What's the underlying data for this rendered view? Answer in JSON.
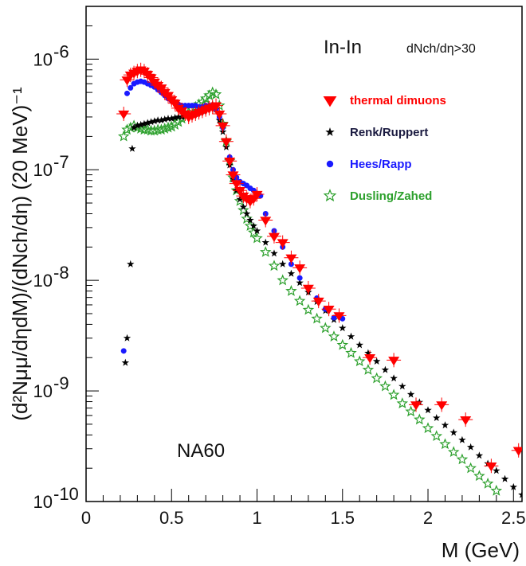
{
  "chart_data": {
    "type": "scatter",
    "title": "",
    "xlabel": "M (GeV)",
    "ylabel": "(d²Nμμ/dηdM)/(dNch/dη) (20 MeV)⁻¹",
    "xlim": [
      0,
      2.55
    ],
    "ylim": [
      1e-10,
      3e-06
    ],
    "yscale": "log",
    "grid": false,
    "legend_position": "top-right",
    "header_left": "In-In",
    "header_right": "dNch/dη>30",
    "annotation": "NA60",
    "x_ticks": [
      {
        "v": 0,
        "label": "0"
      },
      {
        "v": 0.5,
        "label": "0.5"
      },
      {
        "v": 1,
        "label": "1"
      },
      {
        "v": 1.5,
        "label": "1.5"
      },
      {
        "v": 2,
        "label": "2"
      },
      {
        "v": 2.5,
        "label": "2.5"
      }
    ],
    "y_ticks": [
      {
        "v": 1e-10,
        "label": "10",
        "exp": "-10"
      },
      {
        "v": 1e-09,
        "label": "10",
        "exp": "-9"
      },
      {
        "v": 1e-08,
        "label": "10",
        "exp": "-8"
      },
      {
        "v": 1e-07,
        "label": "10",
        "exp": "-7"
      },
      {
        "v": 1e-06,
        "label": "10",
        "exp": "-6"
      }
    ],
    "series": [
      {
        "name": "thermal dimuons",
        "color": "#ff0000",
        "marker": "triangle-down",
        "x": [
          0.22,
          0.24,
          0.26,
          0.28,
          0.3,
          0.32,
          0.34,
          0.36,
          0.38,
          0.4,
          0.42,
          0.44,
          0.46,
          0.48,
          0.5,
          0.52,
          0.54,
          0.56,
          0.58,
          0.6,
          0.62,
          0.64,
          0.66,
          0.68,
          0.7,
          0.72,
          0.74,
          0.76,
          0.78,
          0.8,
          0.82,
          0.84,
          0.86,
          0.88,
          0.9,
          0.92,
          0.94,
          0.96,
          0.98,
          1.0,
          1.05,
          1.1,
          1.15,
          1.2,
          1.25,
          1.3,
          1.36,
          1.42,
          1.48,
          1.66,
          1.8,
          1.93,
          2.08,
          2.22,
          2.37,
          2.53
        ],
        "y": [
          3.2e-07,
          6.5e-07,
          7.2e-07,
          7.5e-07,
          7.8e-07,
          8e-07,
          7.8e-07,
          7.3e-07,
          6.8e-07,
          6.2e-07,
          5.8e-07,
          5.5e-07,
          5e-07,
          4.7e-07,
          4.3e-07,
          4e-07,
          3.6e-07,
          3.4e-07,
          3.2e-07,
          3e-07,
          3.1e-07,
          3.2e-07,
          3.3e-07,
          3.4e-07,
          3.5e-07,
          3.6e-07,
          3.7e-07,
          3.8e-07,
          3.2e-07,
          2.5e-07,
          1.8e-07,
          1.2e-07,
          9e-08,
          7.5e-08,
          6.5e-08,
          5.8e-08,
          5.5e-08,
          5.2e-08,
          5.5e-08,
          6e-08,
          3.5e-08,
          2.5e-08,
          2.2e-08,
          1.6e-08,
          1.3e-08,
          8.5e-09,
          6.5e-09,
          5.5e-09,
          4.8e-09,
          2e-09,
          1.9e-09,
          7.5e-10,
          7.5e-10,
          5.5e-10,
          2.1e-10,
          2.9e-10
        ]
      },
      {
        "name": "Renk/Ruppert",
        "color": "#000000",
        "marker": "star",
        "x": [
          0.23,
          0.24,
          0.26,
          0.27,
          0.28,
          0.3,
          0.32,
          0.34,
          0.36,
          0.38,
          0.4,
          0.42,
          0.44,
          0.46,
          0.48,
          0.5,
          0.52,
          0.54,
          0.56,
          0.58,
          0.6,
          0.62,
          0.64,
          0.66,
          0.68,
          0.7,
          0.72,
          0.74,
          0.76,
          0.78,
          0.8,
          0.82,
          0.84,
          0.86,
          0.88,
          0.9,
          0.92,
          0.94,
          0.96,
          0.98,
          1.0,
          1.05,
          1.1,
          1.15,
          1.2,
          1.25,
          1.3,
          1.35,
          1.4,
          1.45,
          1.5,
          1.55,
          1.6,
          1.65,
          1.7,
          1.75,
          1.8,
          1.85,
          1.9,
          1.95,
          2.0,
          2.05,
          2.1,
          2.15,
          2.2,
          2.25,
          2.3,
          2.35,
          2.4,
          2.45,
          2.5,
          2.55
        ],
        "y": [
          1.8e-09,
          3e-09,
          1.4e-08,
          1.55e-07,
          2.4e-07,
          2.5e-07,
          2.55e-07,
          2.6e-07,
          2.65e-07,
          2.7e-07,
          2.75e-07,
          2.8e-07,
          2.8e-07,
          2.85e-07,
          2.9e-07,
          2.9e-07,
          2.95e-07,
          3e-07,
          3e-07,
          3.05e-07,
          3.1e-07,
          3.15e-07,
          3.2e-07,
          3.3e-07,
          3.4e-07,
          3.6e-07,
          3.8e-07,
          3.9e-07,
          3.5e-07,
          2.8e-07,
          2.2e-07,
          1.6e-07,
          1.1e-07,
          8.2e-08,
          6.5e-08,
          5.4e-08,
          4.6e-08,
          4e-08,
          3.5e-08,
          3.1e-08,
          2.8e-08,
          2.2e-08,
          1.75e-08,
          1.4e-08,
          1.15e-08,
          9.5e-09,
          7.8e-09,
          6.4e-09,
          5.3e-09,
          4.4e-09,
          3.7e-09,
          3.1e-09,
          2.6e-09,
          2.2e-09,
          1.85e-09,
          1.55e-09,
          1.3e-09,
          1.1e-09,
          9.3e-10,
          7.9e-10,
          6.7e-10,
          5.7e-10,
          4.9e-10,
          4.2e-10,
          3.6e-10,
          3.1e-10,
          2.6e-10,
          2.2e-10,
          1.9e-10,
          1.6e-10,
          1.35e-10,
          1.15e-10
        ]
      },
      {
        "name": "Hees/Rapp",
        "color": "#1a1aff",
        "marker": "circle",
        "x": [
          0.22,
          0.24,
          0.26,
          0.28,
          0.3,
          0.32,
          0.34,
          0.36,
          0.38,
          0.4,
          0.42,
          0.44,
          0.46,
          0.48,
          0.5,
          0.52,
          0.54,
          0.56,
          0.58,
          0.6,
          0.62,
          0.64,
          0.66,
          0.68,
          0.7,
          0.72,
          0.74,
          0.76,
          0.78,
          0.8,
          0.82,
          0.84,
          0.86,
          0.88,
          0.9,
          0.92,
          0.94,
          0.96,
          0.98,
          1.0,
          1.02,
          1.05,
          1.1,
          1.15,
          1.2,
          1.25,
          1.3,
          1.35,
          1.4,
          1.45,
          1.5
        ],
        "y": [
          2.3e-09,
          4.9e-07,
          5.5e-07,
          6e-07,
          6.2e-07,
          6.3e-07,
          6.2e-07,
          6e-07,
          5.8e-07,
          5.6e-07,
          5.3e-07,
          5e-07,
          4.7e-07,
          4.4e-07,
          4.2e-07,
          4e-07,
          3.9e-07,
          3.8e-07,
          3.8e-07,
          3.8e-07,
          3.8e-07,
          3.8e-07,
          3.7e-07,
          3.7e-07,
          3.8e-07,
          3.8e-07,
          3.7e-07,
          3.5e-07,
          3e-07,
          2.4e-07,
          1.8e-07,
          1.3e-07,
          1e-07,
          8.5e-08,
          7.8e-08,
          7.5e-08,
          7.2e-08,
          6.8e-08,
          6.5e-08,
          6.1e-08,
          5.8e-08,
          4e-08,
          2.8e-08,
          2e-08,
          1.4e-08,
          1.05e-08,
          8.5e-09,
          6.9e-09,
          5.5e-09,
          4.6e-09,
          4.5e-09
        ]
      },
      {
        "name": "Dusling/Zahed",
        "color": "#2ca02c",
        "marker": "open-star",
        "x": [
          0.22,
          0.24,
          0.26,
          0.28,
          0.3,
          0.32,
          0.34,
          0.36,
          0.38,
          0.4,
          0.42,
          0.44,
          0.46,
          0.48,
          0.5,
          0.52,
          0.54,
          0.56,
          0.58,
          0.6,
          0.62,
          0.64,
          0.66,
          0.68,
          0.7,
          0.72,
          0.74,
          0.76,
          0.78,
          0.8,
          0.82,
          0.84,
          0.86,
          0.88,
          0.9,
          0.92,
          0.94,
          0.96,
          0.98,
          1.0,
          1.05,
          1.1,
          1.15,
          1.2,
          1.25,
          1.3,
          1.35,
          1.4,
          1.45,
          1.5,
          1.55,
          1.6,
          1.65,
          1.7,
          1.75,
          1.8,
          1.85,
          1.9,
          1.95,
          2.0,
          2.05,
          2.1,
          2.15,
          2.2,
          2.25,
          2.3,
          2.35,
          2.4
        ],
        "y": [
          2e-07,
          2.3e-07,
          2.4e-07,
          2.5e-07,
          2.4e-07,
          2.35e-07,
          2.3e-07,
          2.3e-07,
          2.25e-07,
          2.25e-07,
          2.3e-07,
          2.3e-07,
          2.35e-07,
          2.4e-07,
          2.45e-07,
          2.55e-07,
          2.7e-07,
          2.9e-07,
          3.1e-07,
          3.3e-07,
          3.5e-07,
          3.7e-07,
          3.9e-07,
          4.1e-07,
          4.4e-07,
          4.7e-07,
          5e-07,
          4.8e-07,
          3.8e-07,
          2.6e-07,
          1.8e-07,
          1.2e-07,
          8.5e-08,
          6.5e-08,
          5.2e-08,
          4.3e-08,
          3.6e-08,
          3.1e-08,
          2.7e-08,
          2.4e-08,
          1.8e-08,
          1.35e-08,
          1e-08,
          8e-09,
          6.5e-09,
          5.4e-09,
          4.5e-09,
          3.7e-09,
          3.1e-09,
          2.6e-09,
          2.2e-09,
          1.85e-09,
          1.55e-09,
          1.3e-09,
          1.1e-09,
          9.2e-10,
          7.7e-10,
          6.5e-10,
          5.5e-10,
          4.6e-10,
          3.9e-10,
          3.3e-10,
          2.8e-10,
          2.4e-10,
          2e-10,
          1.7e-10,
          1.45e-10,
          1.25e-10
        ]
      }
    ]
  }
}
